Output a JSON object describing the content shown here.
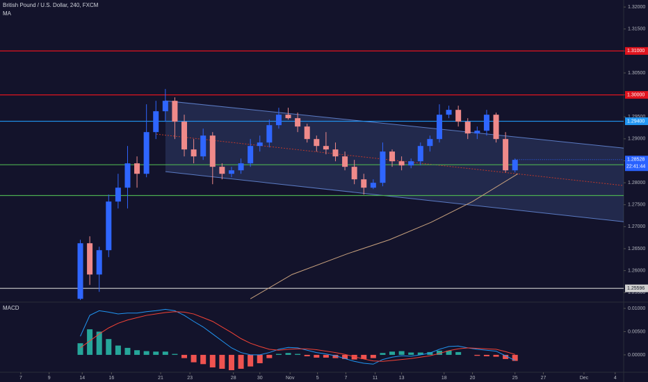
{
  "chart_data": [
    {
      "type": "candlestick",
      "title": "British Pound / U.S. Dollar, 240, FXCM",
      "xlim": [
        -8.5,
        57.5
      ],
      "ylim": [
        1.2533,
        1.3216
      ],
      "yticks": [
        {
          "value": 1.255,
          "label": "1.25500"
        },
        {
          "value": 1.26,
          "label": "1.26000"
        },
        {
          "value": 1.265,
          "label": "1.26500"
        },
        {
          "value": 1.27,
          "label": "1.27000"
        },
        {
          "value": 1.275,
          "label": "1.27500"
        },
        {
          "value": 1.28,
          "label": "1.28000"
        },
        {
          "value": 1.285,
          "label": "1.28500"
        },
        {
          "value": 1.29,
          "label": "1.29000"
        },
        {
          "value": 1.295,
          "label": "1.29500"
        },
        {
          "value": 1.3,
          "label": "1.30000"
        },
        {
          "value": 1.305,
          "label": "1.30500"
        },
        {
          "value": 1.31,
          "label": "1.31000"
        },
        {
          "value": 1.315,
          "label": "1.31500"
        },
        {
          "value": 1.32,
          "label": "1.32000"
        }
      ],
      "up_color": "#2f66ff",
      "down_color": "#ef8a8a",
      "x": [
        0,
        1,
        2,
        3,
        4,
        5,
        6,
        7,
        8,
        9,
        10,
        11,
        12,
        13,
        14,
        15,
        16,
        17,
        18,
        19,
        20,
        21,
        22,
        23,
        24,
        25,
        26,
        27,
        28,
        29,
        30,
        31,
        32,
        33,
        34,
        35,
        36,
        37,
        38,
        39,
        40,
        41,
        42,
        43,
        44,
        45,
        46
      ],
      "open": [
        1.25358,
        1.26623,
        1.25911,
        1.26465,
        1.27572,
        1.27888,
        1.28442,
        1.28204,
        1.29153,
        1.29628,
        1.29865,
        1.29391,
        1.28758,
        1.286,
        1.29074,
        1.28363,
        1.28204,
        1.28283,
        1.28442,
        1.28837,
        1.28916,
        1.29311,
        1.29549,
        1.2947,
        1.2928,
        1.28995,
        1.28837,
        1.28758,
        1.286,
        1.28363,
        1.28078,
        1.27888,
        1.27999,
        1.2871,
        1.28489,
        1.28394,
        1.28489,
        1.28837,
        1.28995,
        1.29549,
        1.29659,
        1.29391,
        1.29122,
        1.29185,
        1.29549,
        1.28995,
        1.28283
      ],
      "high": [
        1.26702,
        1.26781,
        1.26544,
        1.2773,
        1.28204,
        1.28837,
        1.286,
        1.29786,
        1.29865,
        1.30134,
        1.29944,
        1.29549,
        1.28995,
        1.29232,
        1.29153,
        1.28442,
        1.28363,
        1.28552,
        1.28995,
        1.29074,
        1.29438,
        1.29707,
        1.29707,
        1.29596,
        1.29343,
        1.29074,
        1.29153,
        1.28916,
        1.2871,
        1.28521,
        1.28204,
        1.28078,
        1.28916,
        1.28758,
        1.286,
        1.28552,
        1.28916,
        1.29074,
        1.29786,
        1.29754,
        1.29754,
        1.2947,
        1.2928,
        1.29659,
        1.29596,
        1.29153,
        1.28552
      ],
      "low": [
        1.25326,
        1.25674,
        1.25516,
        1.26307,
        1.27414,
        1.27414,
        1.27888,
        1.28125,
        1.28995,
        1.29391,
        1.28995,
        1.286,
        1.28442,
        1.28521,
        1.27967,
        1.28078,
        1.28125,
        1.28204,
        1.28363,
        1.2871,
        1.28805,
        1.29232,
        1.29438,
        1.29153,
        1.28916,
        1.2871,
        1.28647,
        1.28489,
        1.28283,
        1.27967,
        1.2773,
        1.27856,
        1.2792,
        1.28363,
        1.28283,
        1.28331,
        1.28394,
        1.2871,
        1.28916,
        1.2947,
        1.2928,
        1.28995,
        1.28995,
        1.29074,
        1.28916,
        1.28236,
        1.28236
      ],
      "close": [
        1.26623,
        1.25911,
        1.26465,
        1.27572,
        1.27888,
        1.28442,
        1.28204,
        1.29153,
        1.29628,
        1.29865,
        1.29391,
        1.28758,
        1.286,
        1.29074,
        1.28363,
        1.28204,
        1.28283,
        1.28442,
        1.28837,
        1.28916,
        1.29311,
        1.29549,
        1.2947,
        1.2928,
        1.28995,
        1.28837,
        1.28758,
        1.286,
        1.28363,
        1.28078,
        1.27888,
        1.27999,
        1.2871,
        1.28489,
        1.28394,
        1.28489,
        1.28837,
        1.28995,
        1.29549,
        1.29659,
        1.29391,
        1.29122,
        1.29185,
        1.29549,
        1.28995,
        1.28283,
        1.28521
      ],
      "ma": {
        "name": "MA",
        "color": "#c9a27e",
        "x": [
          18,
          22.4,
          28.3,
          32.7,
          37.1,
          41.5,
          46.3
        ],
        "values": [
          1.25358,
          1.25911,
          1.26386,
          1.26702,
          1.27098,
          1.27572,
          1.28204
        ]
      },
      "hlines": [
        {
          "value": 1.31,
          "label": "1.31000",
          "color": "#e0141e"
        },
        {
          "value": 1.3,
          "label": "1.30000",
          "color": "#e0141e"
        },
        {
          "value": 1.294,
          "label": "1.29400",
          "color": "#2196f3"
        },
        {
          "value": 1.2841,
          "color": "#4caf50"
        },
        {
          "value": 1.2771,
          "color": "#4caf50"
        },
        {
          "value": 1.25596,
          "label": "1.25596",
          "color": "#d0d0d0"
        }
      ],
      "last_price": {
        "value": 1.28528,
        "label": "1.28528",
        "countdown": "22:41:44",
        "color": "#2962ff"
      },
      "channel": {
        "color": "#5b7bc4",
        "upper": {
          "x": [
            9.01,
            57.5
          ],
          "values": [
            1.29865,
            1.28789
          ]
        },
        "lower": {
          "x": [
            9.01,
            57.5
          ],
          "values": [
            1.28252,
            1.27113
          ]
        },
        "mid": {
          "x": [
            8.06,
            57.5
          ],
          "values": [
            1.29106,
            1.27936
          ],
          "color": "#c0392b"
        }
      }
    },
    {
      "type": "macd",
      "title": "MACD",
      "xlim": [
        -8.5,
        57.5
      ],
      "ylim": [
        -0.0036,
        0.0109
      ],
      "yticks": [
        {
          "value": 0,
          "label": "0.00000"
        },
        {
          "value": 0.005,
          "label": "0.00500"
        },
        {
          "value": 0.01,
          "label": "0.01000"
        }
      ],
      "xticks": [
        {
          "value": -6.3,
          "label": "7"
        },
        {
          "value": -3.3,
          "label": "9"
        },
        {
          "value": 0.2,
          "label": "14"
        },
        {
          "value": 3.3,
          "label": "16"
        },
        {
          "value": 8.5,
          "label": "21"
        },
        {
          "value": 11.6,
          "label": "23"
        },
        {
          "value": 16.2,
          "label": "28"
        },
        {
          "value": 19,
          "label": "30"
        },
        {
          "value": 22.2,
          "label": "Nov"
        },
        {
          "value": 25.1,
          "label": "5"
        },
        {
          "value": 28.1,
          "label": "7"
        },
        {
          "value": 31.2,
          "label": "11"
        },
        {
          "value": 34,
          "label": "13"
        },
        {
          "value": 38.5,
          "label": "18"
        },
        {
          "value": 41.5,
          "label": "20"
        },
        {
          "value": 46,
          "label": "25"
        },
        {
          "value": 49,
          "label": "27"
        },
        {
          "value": 53.3,
          "label": "Dec"
        },
        {
          "value": 56.6,
          "label": "4"
        }
      ],
      "x": [
        0,
        1,
        2,
        3,
        4,
        5,
        6,
        7,
        8,
        9,
        10,
        11,
        12,
        13,
        14,
        15,
        16,
        17,
        18,
        19,
        20,
        21,
        22,
        23,
        24,
        25,
        26,
        27,
        28,
        29,
        30,
        31,
        32,
        33,
        34,
        35,
        36,
        37,
        38,
        39,
        40,
        41,
        42,
        43,
        44,
        45,
        46
      ],
      "histogram": {
        "pos_color": "#26a69a",
        "neg_color": "#ef5350",
        "values": [
          0.0025,
          0.0055,
          0.005,
          0.0034,
          0.002,
          0.0015,
          0.001,
          0.0008,
          0.0007,
          0.0007,
          0.0002,
          -0.0007,
          -0.0016,
          -0.002,
          -0.0027,
          -0.003,
          -0.0033,
          -0.003,
          -0.0025,
          -0.0018,
          -0.0007,
          0.0002,
          0.0004,
          0.0002,
          -0.0003,
          -0.0006,
          -0.0006,
          -0.0007,
          -0.0009,
          -0.001,
          -0.0009,
          -0.0007,
          0.0004,
          0.0007,
          0.0008,
          0.0005,
          0.0005,
          0.0006,
          0.0009,
          0.0009,
          0.0006,
          0,
          -0.0002,
          -0.0003,
          -0.0004,
          -0.0009,
          -0.0013
        ]
      },
      "series": [
        {
          "color": "#2196f3",
          "values": [
            0.004,
            0.0085,
            0.0095,
            0.0092,
            0.0088,
            0.009,
            0.009,
            0.0093,
            0.0095,
            0.0098,
            0.0095,
            0.0085,
            0.0072,
            0.006,
            0.0045,
            0.003,
            0.0015,
            0.0005,
            0,
            0,
            0.0005,
            0.0012,
            0.0016,
            0.0015,
            0.001,
            0.0005,
            0.0002,
            -0.0002,
            -0.0008,
            -0.0014,
            -0.0018,
            -0.002,
            -0.001,
            -0.0005,
            -0.0002,
            -0.0003,
            0,
            0.0004,
            0.0012,
            0.0018,
            0.0019,
            0.0015,
            0.0012,
            0.001,
            0.0008,
            -0.0002,
            -0.0012
          ]
        },
        {
          "color": "#f44336",
          "values": [
            0.0015,
            0.003,
            0.0045,
            0.0058,
            0.0068,
            0.0075,
            0.008,
            0.0085,
            0.0088,
            0.0091,
            0.0093,
            0.0092,
            0.0088,
            0.008,
            0.0072,
            0.006,
            0.0048,
            0.0035,
            0.0025,
            0.0018,
            0.0012,
            0.001,
            0.0012,
            0.0013,
            0.0013,
            0.0011,
            0.0008,
            0.0005,
            0.0001,
            -0.0004,
            -0.0009,
            -0.0013,
            -0.0014,
            -0.0012,
            -0.001,
            -0.0008,
            -0.0005,
            -0.0002,
            0.0003,
            0.0009,
            0.0013,
            0.0015,
            0.0014,
            0.0013,
            0.0012,
            0.0007,
            0.0001
          ]
        }
      ]
    }
  ]
}
